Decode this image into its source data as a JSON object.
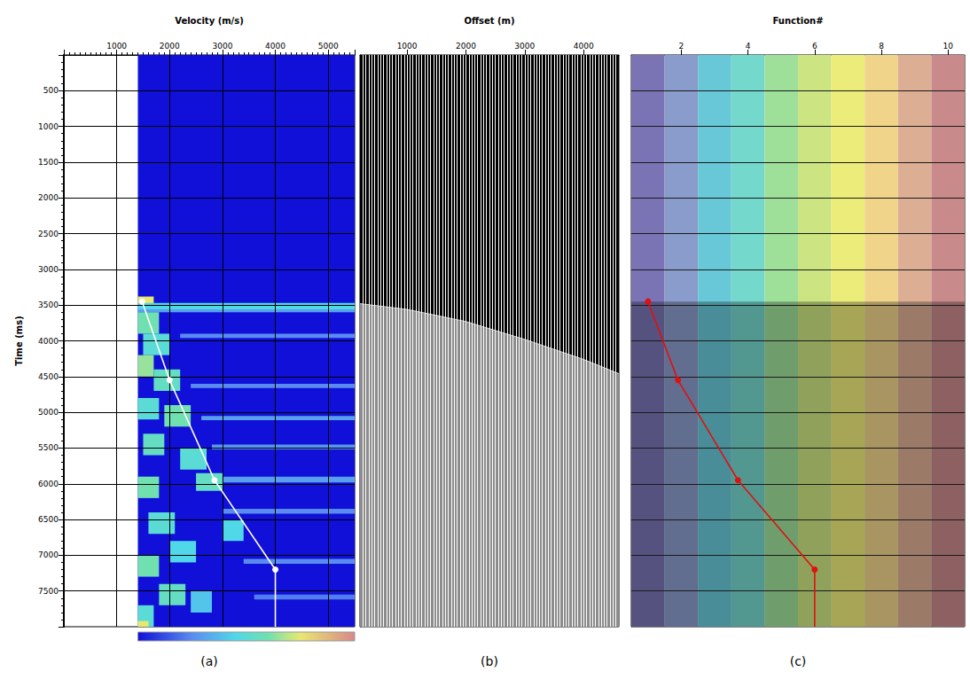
{
  "chart_data": [
    {
      "type": "velocity_semblance",
      "caption": "(a)",
      "xlabel": "Velocity (m/s)",
      "xlim": [
        0,
        5500
      ],
      "xticks": [
        1000,
        2000,
        3000,
        4000,
        5000
      ],
      "ylabel": "Time (ms)",
      "ylim": [
        0,
        8000
      ],
      "yticks": [
        500,
        1000,
        1500,
        2000,
        2500,
        3000,
        3500,
        4000,
        4500,
        5000,
        5500,
        6000,
        6500,
        7000,
        7500
      ],
      "grid": true,
      "color_range": [
        0,
        1
      ],
      "semblance": [
        {
          "velocity": [
            1400,
            5500
          ],
          "time": [
            0,
            8000
          ],
          "value": 0.0
        },
        {
          "velocity": [
            1400,
            1700
          ],
          "time": [
            3380,
            3480
          ],
          "value": 0.75
        },
        {
          "velocity": [
            1400,
            5500
          ],
          "time": [
            3470,
            3560
          ],
          "value": 0.45
        },
        {
          "velocity": [
            1400,
            5500
          ],
          "time": [
            3560,
            3600
          ],
          "value": 0.3
        },
        {
          "velocity": [
            2200,
            5500
          ],
          "time": [
            3900,
            3960
          ],
          "value": 0.25
        },
        {
          "velocity": [
            2400,
            5500
          ],
          "time": [
            4600,
            4660
          ],
          "value": 0.25
        },
        {
          "velocity": [
            2600,
            5500
          ],
          "time": [
            5050,
            5110
          ],
          "value": 0.3
        },
        {
          "velocity": [
            2800,
            5500
          ],
          "time": [
            5450,
            5520
          ],
          "value": 0.28
        },
        {
          "velocity": [
            3000,
            5500
          ],
          "time": [
            5900,
            5980
          ],
          "value": 0.3
        },
        {
          "velocity": [
            3000,
            5500
          ],
          "time": [
            6350,
            6420
          ],
          "value": 0.25
        },
        {
          "velocity": [
            3400,
            5500
          ],
          "time": [
            7050,
            7120
          ],
          "value": 0.25
        },
        {
          "velocity": [
            3600,
            5500
          ],
          "time": [
            7550,
            7620
          ],
          "value": 0.22
        },
        {
          "velocity": [
            1400,
            1800
          ],
          "time": [
            3600,
            3900
          ],
          "value": 0.6
        },
        {
          "velocity": [
            1500,
            2000
          ],
          "time": [
            3900,
            4200
          ],
          "value": 0.5
        },
        {
          "velocity": [
            1400,
            1700
          ],
          "time": [
            4200,
            4500
          ],
          "value": 0.65
        },
        {
          "velocity": [
            1700,
            2200
          ],
          "time": [
            4400,
            4700
          ],
          "value": 0.55
        },
        {
          "velocity": [
            1400,
            1800
          ],
          "time": [
            4800,
            5100
          ],
          "value": 0.5
        },
        {
          "velocity": [
            1900,
            2400
          ],
          "time": [
            4900,
            5200
          ],
          "value": 0.6
        },
        {
          "velocity": [
            1500,
            1900
          ],
          "time": [
            5300,
            5600
          ],
          "value": 0.55
        },
        {
          "velocity": [
            2200,
            2700
          ],
          "time": [
            5500,
            5800
          ],
          "value": 0.5
        },
        {
          "velocity": [
            1400,
            1800
          ],
          "time": [
            5900,
            6200
          ],
          "value": 0.6
        },
        {
          "velocity": [
            2500,
            3000
          ],
          "time": [
            5850,
            6100
          ],
          "value": 0.55
        },
        {
          "velocity": [
            1600,
            2100
          ],
          "time": [
            6400,
            6700
          ],
          "value": 0.5
        },
        {
          "velocity": [
            2000,
            2500
          ],
          "time": [
            6800,
            7100
          ],
          "value": 0.45
        },
        {
          "velocity": [
            1400,
            1800
          ],
          "time": [
            7000,
            7300
          ],
          "value": 0.6
        },
        {
          "velocity": [
            3000,
            3400
          ],
          "time": [
            6500,
            6800
          ],
          "value": 0.45
        },
        {
          "velocity": [
            1800,
            2300
          ],
          "time": [
            7400,
            7700
          ],
          "value": 0.55
        },
        {
          "velocity": [
            1400,
            1700
          ],
          "time": [
            7700,
            8000
          ],
          "value": 0.5
        },
        {
          "velocity": [
            2400,
            2800
          ],
          "time": [
            7500,
            7800
          ],
          "value": 0.4
        },
        {
          "velocity": [
            1400,
            1600
          ],
          "time": [
            7920,
            8000
          ],
          "value": 0.75
        }
      ],
      "picks": {
        "velocity": [
          1480,
          2000,
          2850,
          4000,
          4000
        ],
        "time": [
          3450,
          4550,
          5950,
          7200,
          8000
        ],
        "color": "#ffffff",
        "marker": "circle"
      }
    },
    {
      "type": "gather",
      "caption": "(b)",
      "xlabel": "Offset (m)",
      "xlim": [
        200,
        4600
      ],
      "xticks": [
        1000,
        2000,
        3000,
        4000
      ],
      "ylim": [
        0,
        8000
      ],
      "yticks": [
        500,
        1000,
        1500,
        2000,
        2500,
        3000,
        3500,
        4000,
        4500,
        5000,
        5500,
        6000,
        6500,
        7000,
        7500
      ],
      "tick_labels": "x",
      "grid": false,
      "trace_offsets": [
        250,
        300,
        350,
        400,
        450,
        500,
        550,
        600,
        650,
        700,
        750,
        800,
        850,
        900,
        950,
        1000,
        1050,
        1100,
        1150,
        1200,
        1250,
        1300,
        1350,
        1400,
        1450,
        1500,
        1550,
        1600,
        1650,
        1700,
        1750,
        1800,
        1850,
        1900,
        1950,
        2000,
        2050,
        2100,
        2150,
        2200,
        2250,
        2300,
        2350,
        2400,
        2450,
        2500,
        2550,
        2600,
        2650,
        2700,
        2750,
        2800,
        2850,
        2900,
        2950,
        3000,
        3050,
        3100,
        3150,
        3200,
        3250,
        3300,
        3350,
        3400,
        3450,
        3500,
        3550,
        3600,
        3650,
        3700,
        3750,
        3800,
        3850,
        3900,
        3950,
        4000,
        4050,
        4100,
        4150,
        4200,
        4250,
        4300,
        4350,
        4400,
        4450,
        4500,
        4550
      ],
      "mute": {
        "offset": [
          200,
          1000,
          2000,
          3000,
          4000,
          4600
        ],
        "time": [
          3480,
          3560,
          3730,
          3980,
          4260,
          4460
        ]
      }
    },
    {
      "type": "function_panel",
      "caption": "(c)",
      "xlabel": "Function#",
      "xlim": [
        0.5,
        10.5
      ],
      "xticks": [
        2,
        4,
        6,
        8,
        10
      ],
      "ylim": [
        0,
        8000
      ],
      "yticks": [
        500,
        1000,
        1500,
        2000,
        2500,
        3000,
        3500,
        4000,
        4500,
        5000,
        5500,
        6000,
        6500,
        7000,
        7500
      ],
      "tick_labels": "x",
      "grid": "y",
      "functions": [
        1,
        2,
        3,
        4,
        5,
        6,
        7,
        8,
        9,
        10
      ],
      "colors": [
        "#7a74b4",
        "#8a9ccc",
        "#68c8d8",
        "#74d8cc",
        "#9ee09a",
        "#cce482",
        "#ecec7a",
        "#f0d48a",
        "#dcae94",
        "#c88a8a"
      ],
      "gather_top": 3450,
      "picks": {
        "function": [
          1.0,
          1.9,
          3.7,
          6.0,
          6.0
        ],
        "time": [
          3450,
          4550,
          5950,
          7200,
          8000
        ],
        "color": "#e01010",
        "marker": "circle"
      }
    }
  ]
}
